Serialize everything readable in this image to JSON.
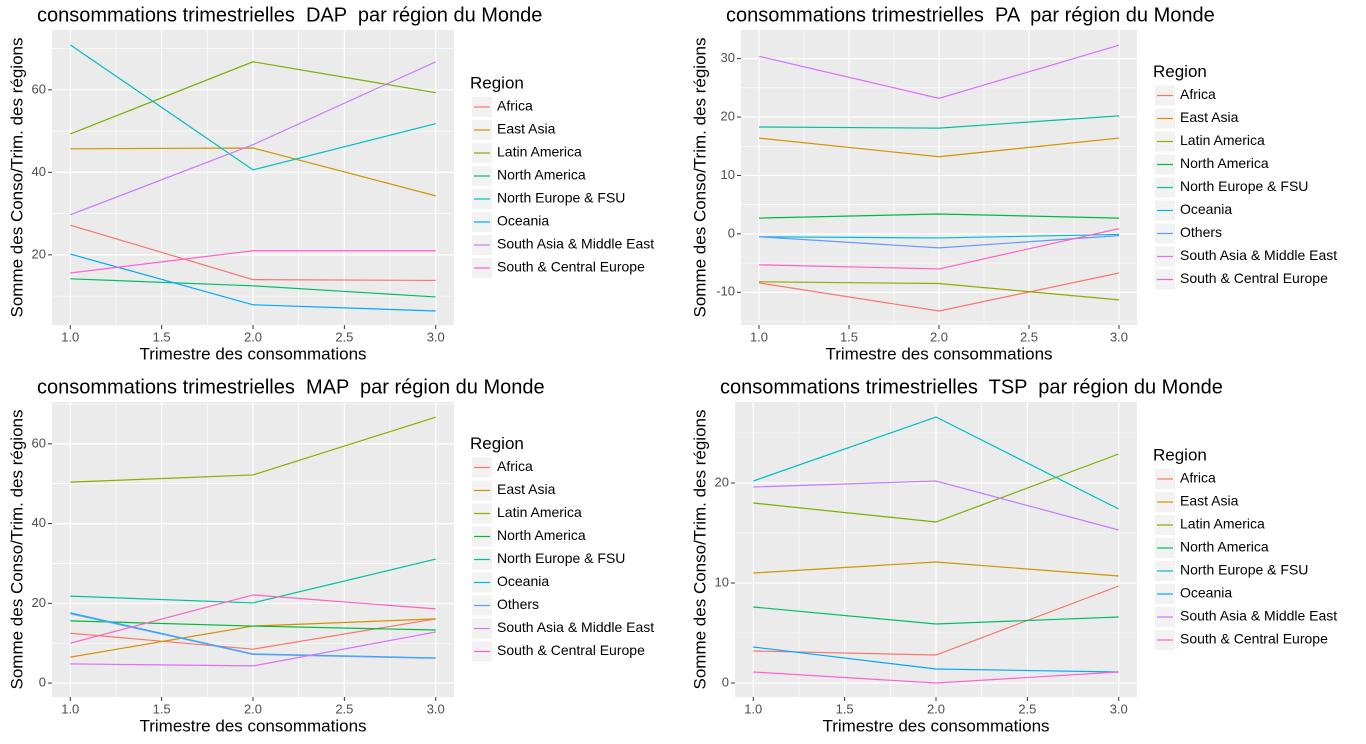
{
  "chart_data": [
    {
      "type": "line",
      "title": "consommations trimestrielles  DAP  par région du Monde",
      "x_label": "Trimestre des consommations",
      "y_label": "Somme des Conso/Trim. des régions",
      "legend_title": "Region",
      "legend": "right",
      "grid": true,
      "x": [
        1,
        2,
        3
      ],
      "xlim": [
        0.9,
        3.1
      ],
      "xticks": [
        {
          "value": 1,
          "label": "1.0"
        },
        1.5,
        {
          "value": 2,
          "label": "2.0"
        },
        2.5,
        {
          "value": 3,
          "label": "3.0"
        }
      ],
      "ylim": [
        3,
        74.5
      ],
      "yticks": [
        20,
        40,
        60
      ],
      "series": [
        {
          "name": "Africa",
          "color": "#F8766D",
          "values": [
            27.2,
            14,
            13.8
          ]
        },
        {
          "name": "East Asia",
          "color": "#CD9600",
          "values": [
            45.7,
            45.9,
            34.3
          ]
        },
        {
          "name": "Latin America",
          "color": "#7CAE00",
          "values": [
            49.3,
            66.8,
            59.3
          ]
        },
        {
          "name": "North America",
          "color": "#00BE67",
          "values": [
            14.2,
            12.5,
            9.8
          ]
        },
        {
          "name": "North Europe & FSU",
          "color": "#00BFC4",
          "values": [
            70.9,
            40.6,
            51.8
          ]
        },
        {
          "name": "Oceania",
          "color": "#00A9FF",
          "values": [
            20.2,
            7.9,
            6.4
          ]
        },
        {
          "name": "South Asia & Middle East",
          "color": "#C77CFF",
          "values": [
            29.7,
            46.7,
            66.8
          ]
        },
        {
          "name": "South & Central Europe",
          "color": "#FF61CC",
          "values": [
            15.6,
            21,
            21
          ]
        }
      ]
    },
    {
      "type": "line",
      "title": "consommations trimestrielles  PA  par région du Monde",
      "x_label": "Trimestre des consommations",
      "y_label": "Somme des Conso/Trim. des régions",
      "legend_title": "Region",
      "legend": "right",
      "grid": true,
      "x": [
        1,
        2,
        3
      ],
      "xlim": [
        0.9,
        3.1
      ],
      "xticks": [
        {
          "value": 1,
          "label": "1.0"
        },
        1.5,
        {
          "value": 2,
          "label": "2.0"
        },
        2.5,
        {
          "value": 3,
          "label": "3.0"
        }
      ],
      "ylim": [
        -15.6,
        34.9
      ],
      "yticks": [
        -10,
        0,
        10,
        20,
        30
      ],
      "series": [
        {
          "name": "Africa",
          "color": "#F8766D",
          "values": [
            -8.4,
            -13.2,
            -6.7
          ]
        },
        {
          "name": "East Asia",
          "color": "#D39200",
          "values": [
            16.4,
            13.2,
            16.4
          ]
        },
        {
          "name": "Latin America",
          "color": "#93AA00",
          "values": [
            -8.2,
            -8.5,
            -11.3
          ]
        },
        {
          "name": "North America",
          "color": "#00BA38",
          "values": [
            2.7,
            3.4,
            2.7
          ]
        },
        {
          "name": "North Europe & FSU",
          "color": "#00C19F",
          "values": [
            18.3,
            18.1,
            20.2
          ]
        },
        {
          "name": "Oceania",
          "color": "#00B9E3",
          "values": [
            -0.5,
            -0.7,
            -0.1
          ]
        },
        {
          "name": "Others",
          "color": "#619CFF",
          "values": [
            -0.5,
            -2.4,
            -0.3
          ]
        },
        {
          "name": "South Asia & Middle East",
          "color": "#DB72FB",
          "values": [
            30.4,
            23.2,
            32.3
          ]
        },
        {
          "name": "South & Central Europe",
          "color": "#FF61C3",
          "values": [
            -5.3,
            -6,
            0.9
          ]
        }
      ]
    },
    {
      "type": "line",
      "title": "consommations trimestrielles  MAP  par région du Monde",
      "x_label": "Trimestre des consommations",
      "y_label": "Somme des Conso/Trim. des régions",
      "legend_title": "Region",
      "legend": "right",
      "grid": true,
      "x": [
        1,
        2,
        3
      ],
      "xlim": [
        0.9,
        3.1
      ],
      "xticks": [
        {
          "value": 1,
          "label": "1.0"
        },
        1.5,
        {
          "value": 2,
          "label": "2.0"
        },
        2.5,
        {
          "value": 3,
          "label": "3.0"
        }
      ],
      "ylim": [
        -3.5,
        70.5
      ],
      "yticks": [
        0,
        20,
        40,
        60
      ],
      "series": [
        {
          "name": "Africa",
          "color": "#F8766D",
          "values": [
            12.5,
            8.5,
            16.1
          ]
        },
        {
          "name": "East Asia",
          "color": "#D39200",
          "values": [
            6.5,
            14.3,
            16.1
          ]
        },
        {
          "name": "Latin America",
          "color": "#93AA00",
          "values": [
            50.4,
            52.2,
            66.7
          ]
        },
        {
          "name": "North America",
          "color": "#00BA38",
          "values": [
            15.6,
            14.3,
            13.3
          ]
        },
        {
          "name": "North Europe & FSU",
          "color": "#00C19F",
          "values": [
            21.8,
            20.1,
            31.1
          ]
        },
        {
          "name": "Oceania",
          "color": "#00B9E3",
          "values": [
            17.6,
            7.3,
            6.3
          ]
        },
        {
          "name": "Others",
          "color": "#619CFF",
          "values": [
            17.4,
            7.2,
            6.2
          ]
        },
        {
          "name": "South Asia & Middle East",
          "color": "#DB72FB",
          "values": [
            4.8,
            4.3,
            12.8
          ]
        },
        {
          "name": "South & Central Europe",
          "color": "#FF61C3",
          "values": [
            10,
            22.1,
            18.6
          ]
        }
      ]
    },
    {
      "type": "line",
      "title": "consommations trimestrielles  TSP  par région du Monde",
      "x_label": "Trimestre des consommations",
      "y_label": "Somme des Conso/Trim. des régions",
      "legend_title": "Region",
      "legend": "right",
      "grid": true,
      "x": [
        1,
        2,
        3
      ],
      "xlim": [
        0.9,
        3.1
      ],
      "xticks": [
        {
          "value": 1,
          "label": "1.0"
        },
        1.5,
        {
          "value": 2,
          "label": "2.0"
        },
        2.5,
        {
          "value": 3,
          "label": "3.0"
        }
      ],
      "ylim": [
        -1.4,
        28.1
      ],
      "yticks": [
        0,
        10,
        20
      ],
      "series": [
        {
          "name": "Africa",
          "color": "#F8766D",
          "values": [
            3.2,
            2.8,
            9.7
          ]
        },
        {
          "name": "East Asia",
          "color": "#CD9600",
          "values": [
            11,
            12.1,
            10.7
          ]
        },
        {
          "name": "Latin America",
          "color": "#7CAE00",
          "values": [
            18,
            16.1,
            22.9
          ]
        },
        {
          "name": "North America",
          "color": "#00BE67",
          "values": [
            7.6,
            5.9,
            6.6
          ]
        },
        {
          "name": "North Europe & FSU",
          "color": "#00BFC4",
          "values": [
            20.2,
            26.6,
            17.4
          ]
        },
        {
          "name": "Oceania",
          "color": "#00A9FF",
          "values": [
            3.6,
            1.4,
            1.1
          ]
        },
        {
          "name": "South Asia & Middle East",
          "color": "#C77CFF",
          "values": [
            19.6,
            20.2,
            15.3
          ]
        },
        {
          "name": "South & Central Europe",
          "color": "#FF61CC",
          "values": [
            1.1,
            0,
            1.1
          ]
        }
      ]
    }
  ]
}
